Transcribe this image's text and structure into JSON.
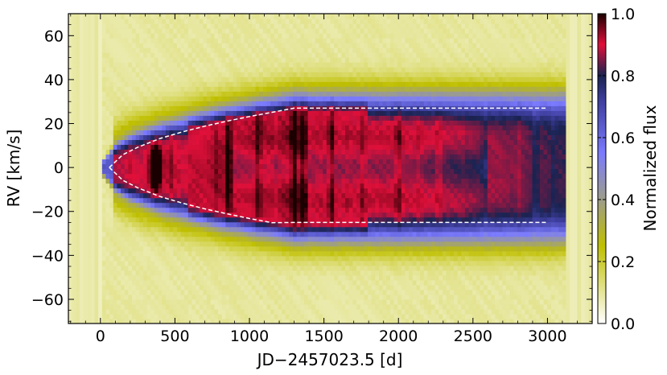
{
  "chart_data": {
    "type": "heatmap",
    "title": "",
    "xlabel": "JD−2457023.5 [d]",
    "ylabel": "RV [km/s]",
    "xlim": [
      -215,
      3300
    ],
    "ylim": [
      -71,
      70
    ],
    "x_ticks": [
      0,
      500,
      1000,
      1500,
      2000,
      2500,
      3000
    ],
    "x_tick_labels": [
      "0",
      "500",
      "1000",
      "1500",
      "2000",
      "2500",
      "3000"
    ],
    "y_ticks": [
      -60,
      -40,
      -20,
      0,
      20,
      40,
      60
    ],
    "y_tick_labels": [
      "−60",
      "−40",
      "−20",
      "0",
      "20",
      "40",
      "60"
    ],
    "colorbar": {
      "label": "Normalized flux",
      "range": [
        0,
        1
      ],
      "ticks": [
        0.0,
        0.2,
        0.4,
        0.6,
        0.8,
        1.0
      ],
      "tick_labels": [
        "0.0",
        "0.2",
        "0.4",
        "0.6",
        "0.8",
        "1.0"
      ],
      "colormap_stops": [
        {
          "value": 0.0,
          "color": "#ffffff"
        },
        {
          "value": 0.25,
          "color": "#bfbf00"
        },
        {
          "value": 0.4,
          "color": "#9d9d8a"
        },
        {
          "value": 0.55,
          "color": "#7b7bff"
        },
        {
          "value": 0.72,
          "color": "#3e3e9e"
        },
        {
          "value": 0.8,
          "color": "#1a2350"
        },
        {
          "value": 0.9,
          "color": "#e0103a"
        },
        {
          "value": 1.0,
          "color": "#1a0000"
        }
      ]
    },
    "envelope_curve": {
      "style": "dashed",
      "color": "#ffffff",
      "upper": {
        "x": [
          60,
          150,
          250,
          400,
          550,
          700,
          850,
          1000,
          1150,
          1300,
          3000
        ],
        "y": [
          0,
          5.8,
          9.2,
          13.2,
          16.2,
          18.8,
          21.1,
          23.2,
          25.1,
          27,
          27
        ]
      },
      "lower": {
        "x": [
          60,
          150,
          250,
          400,
          550,
          700,
          850,
          1000,
          1150,
          1300,
          3000
        ],
        "y": [
          0,
          -5.8,
          -9.2,
          -13.2,
          -16.2,
          -18.8,
          -21.1,
          -23.2,
          -25.1,
          -25,
          -25
        ]
      }
    },
    "features": {
      "emission_band_half_width_kms": 27,
      "peak_flux_epoch_days": 370,
      "peak_flux": 1.0,
      "vertical_streaks_days": [
        200,
        290,
        380,
        470,
        560,
        690,
        780,
        860,
        1060,
        1180,
        1300,
        1360,
        1470,
        1550,
        1660,
        1760,
        1900,
        2000,
        2140,
        2270,
        2430,
        2580,
        2720,
        2810,
        2920,
        3040
      ]
    }
  }
}
